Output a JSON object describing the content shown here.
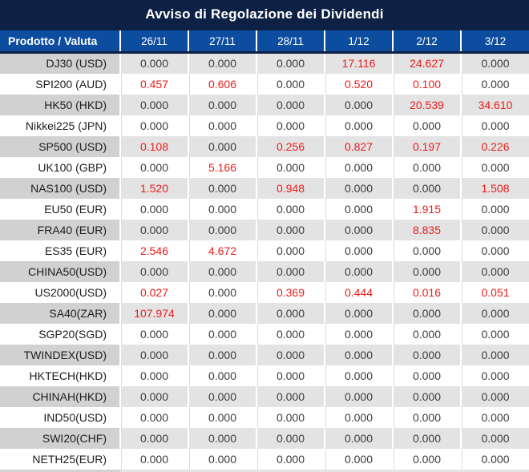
{
  "title": "Avviso di Regolazione dei Dividendi",
  "colors": {
    "title_bg": "#0C2144",
    "header_bg": "#0D4DA0",
    "row_stripe_product": "#D1D1D1",
    "row_stripe_value": "#E3E3E3",
    "value_black": "#3C3C3C",
    "value_red": "#EC1C1C"
  },
  "table": {
    "columns": [
      "Prodotto / Valuta",
      "26/11",
      "27/11",
      "28/11",
      "1/12",
      "2/12",
      "3/12"
    ],
    "rows": [
      {
        "product": "DJ30 (USD)",
        "values": [
          "0.000",
          "0.000",
          "0.000",
          "17.116",
          "24.627",
          "0.000"
        ],
        "red": [
          false,
          false,
          false,
          true,
          true,
          false
        ]
      },
      {
        "product": "SPI200 (AUD)",
        "values": [
          "0.457",
          "0.606",
          "0.000",
          "0.520",
          "0.100",
          "0.000"
        ],
        "red": [
          true,
          true,
          false,
          true,
          true,
          false
        ]
      },
      {
        "product": "HK50 (HKD)",
        "values": [
          "0.000",
          "0.000",
          "0.000",
          "0.000",
          "20.539",
          "34.610"
        ],
        "red": [
          false,
          false,
          false,
          false,
          true,
          true
        ]
      },
      {
        "product": "Nikkei225 (JPN)",
        "values": [
          "0.000",
          "0.000",
          "0.000",
          "0.000",
          "0.000",
          "0.000"
        ],
        "red": [
          false,
          false,
          false,
          false,
          false,
          false
        ]
      },
      {
        "product": "SP500 (USD)",
        "values": [
          "0.108",
          "0.000",
          "0.256",
          "0.827",
          "0.197",
          "0.226"
        ],
        "red": [
          true,
          false,
          true,
          true,
          true,
          true
        ]
      },
      {
        "product": "UK100 (GBP)",
        "values": [
          "0.000",
          "5.166",
          "0.000",
          "0.000",
          "0.000",
          "0.000"
        ],
        "red": [
          false,
          true,
          false,
          false,
          false,
          false
        ]
      },
      {
        "product": "NAS100 (USD)",
        "values": [
          "1.520",
          "0.000",
          "0.948",
          "0.000",
          "0.000",
          "1.508"
        ],
        "red": [
          true,
          false,
          true,
          false,
          false,
          true
        ]
      },
      {
        "product": "EU50 (EUR)",
        "values": [
          "0.000",
          "0.000",
          "0.000",
          "0.000",
          "1.915",
          "0.000"
        ],
        "red": [
          false,
          false,
          false,
          false,
          true,
          false
        ]
      },
      {
        "product": "FRA40 (EUR)",
        "values": [
          "0.000",
          "0.000",
          "0.000",
          "0.000",
          "8.835",
          "0.000"
        ],
        "red": [
          false,
          false,
          false,
          false,
          true,
          false
        ]
      },
      {
        "product": "ES35 (EUR)",
        "values": [
          "2.546",
          "4.672",
          "0.000",
          "0.000",
          "0.000",
          "0.000"
        ],
        "red": [
          true,
          true,
          false,
          false,
          false,
          false
        ]
      },
      {
        "product": "CHINA50(USD)",
        "values": [
          "0.000",
          "0.000",
          "0.000",
          "0.000",
          "0.000",
          "0.000"
        ],
        "red": [
          false,
          false,
          false,
          false,
          false,
          false
        ]
      },
      {
        "product": "US2000(USD)",
        "values": [
          "0.027",
          "0.000",
          "0.369",
          "0.444",
          "0.016",
          "0.051"
        ],
        "red": [
          true,
          false,
          true,
          true,
          true,
          true
        ]
      },
      {
        "product": "SA40(ZAR)",
        "values": [
          "107.974",
          "0.000",
          "0.000",
          "0.000",
          "0.000",
          "0.000"
        ],
        "red": [
          true,
          false,
          false,
          false,
          false,
          false
        ]
      },
      {
        "product": "SGP20(SGD)",
        "values": [
          "0.000",
          "0.000",
          "0.000",
          "0.000",
          "0.000",
          "0.000"
        ],
        "red": [
          false,
          false,
          false,
          false,
          false,
          false
        ]
      },
      {
        "product": "TWINDEX(USD)",
        "values": [
          "0.000",
          "0.000",
          "0.000",
          "0.000",
          "0.000",
          "0.000"
        ],
        "red": [
          false,
          false,
          false,
          false,
          false,
          false
        ]
      },
      {
        "product": "HKTECH(HKD)",
        "values": [
          "0.000",
          "0.000",
          "0.000",
          "0.000",
          "0.000",
          "0.000"
        ],
        "red": [
          false,
          false,
          false,
          false,
          false,
          false
        ]
      },
      {
        "product": "CHINAH(HKD)",
        "values": [
          "0.000",
          "0.000",
          "0.000",
          "0.000",
          "0.000",
          "0.000"
        ],
        "red": [
          false,
          false,
          false,
          false,
          false,
          false
        ]
      },
      {
        "product": "IND50(USD)",
        "values": [
          "0.000",
          "0.000",
          "0.000",
          "0.000",
          "0.000",
          "0.000"
        ],
        "red": [
          false,
          false,
          false,
          false,
          false,
          false
        ]
      },
      {
        "product": "SWI20(CHF)",
        "values": [
          "0.000",
          "0.000",
          "0.000",
          "0.000",
          "0.000",
          "0.000"
        ],
        "red": [
          false,
          false,
          false,
          false,
          false,
          false
        ]
      },
      {
        "product": "NETH25(EUR)",
        "values": [
          "0.000",
          "0.000",
          "0.000",
          "0.000",
          "0.000",
          "0.000"
        ],
        "red": [
          false,
          false,
          false,
          false,
          false,
          false
        ]
      }
    ]
  }
}
